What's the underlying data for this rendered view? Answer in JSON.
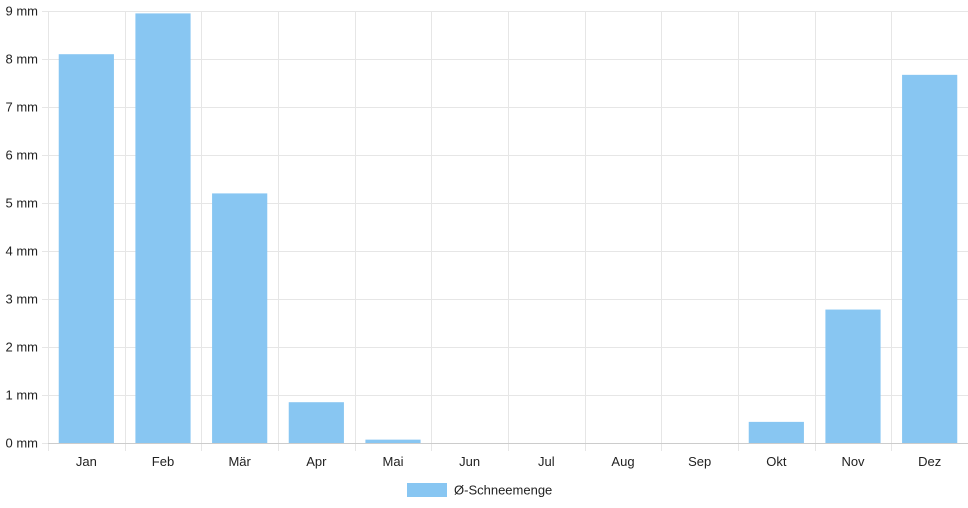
{
  "chart_data": {
    "type": "bar",
    "categories": [
      "Jan",
      "Feb",
      "Mär",
      "Apr",
      "Mai",
      "Jun",
      "Jul",
      "Aug",
      "Sep",
      "Okt",
      "Nov",
      "Dez"
    ],
    "series": [
      {
        "name": "Ø-Schneemenge",
        "values": [
          8.1,
          8.95,
          5.2,
          0.85,
          0.07,
          0,
          0,
          0,
          0,
          0.44,
          2.78,
          7.67
        ],
        "color": "#88c6f2"
      }
    ],
    "unit": "mm",
    "ylim": [
      0,
      9
    ],
    "y_ticks": [
      {
        "value": 0,
        "label": "0 mm"
      },
      {
        "value": 1,
        "label": "1 mm"
      },
      {
        "value": 2,
        "label": "2 mm"
      },
      {
        "value": 3,
        "label": "3 mm"
      },
      {
        "value": 4,
        "label": "4 mm"
      },
      {
        "value": 5,
        "label": "5 mm"
      },
      {
        "value": 6,
        "label": "6 mm"
      },
      {
        "value": 7,
        "label": "7 mm"
      },
      {
        "value": 8,
        "label": "8 mm"
      },
      {
        "value": 9,
        "label": "9 mm"
      }
    ],
    "grid": true,
    "legend_position": "bottom-center",
    "title": "",
    "xlabel": "",
    "ylabel": ""
  }
}
